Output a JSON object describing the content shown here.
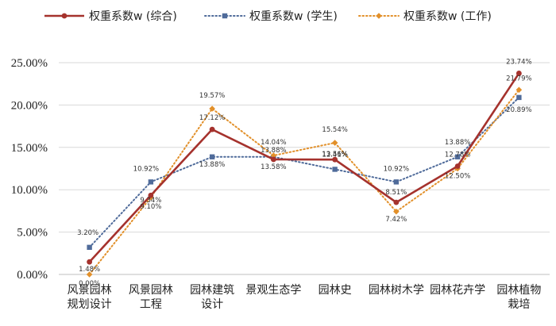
{
  "chart_data": {
    "type": "line",
    "categories": [
      [
        "风景园林",
        "规划设计"
      ],
      [
        "风景园林",
        "工程"
      ],
      [
        "园林建筑",
        "设计"
      ],
      [
        "景观生态学"
      ],
      [
        "园林史"
      ],
      [
        "园林树木学"
      ],
      [
        "园林花卉学"
      ],
      [
        "园林植物",
        "栽培"
      ]
    ],
    "y_ticks": [
      "0.00%",
      "5.00%",
      "10.00%",
      "15.00%",
      "20.00%",
      "25.00%"
    ],
    "ylim": [
      0,
      25
    ],
    "grid": "horizontal",
    "legend_position": "top",
    "series": [
      {
        "name": "权重系数w (综合)",
        "color": "#a5322d",
        "style": "solid",
        "marker": "circle",
        "values": [
          1.48,
          9.34,
          17.12,
          13.58,
          13.56,
          8.51,
          12.78,
          23.74
        ],
        "labels": [
          "1.48%",
          "9.34%",
          "17.12%",
          "13.58%",
          "13.56%",
          "8.51%",
          "12.78%",
          "23.74%"
        ]
      },
      {
        "name": "权重系数w (学生)",
        "color": "#4f6b9a",
        "style": "dotted",
        "marker": "square",
        "values": [
          3.2,
          10.92,
          13.88,
          13.88,
          12.41,
          10.92,
          13.88,
          20.89
        ],
        "labels": [
          "3.20%",
          "10.92%",
          "13.88%",
          "13.88%",
          "12.41%",
          "10.92%",
          "13.88%",
          "20.89%"
        ]
      },
      {
        "name": "权重系数w (工作)",
        "color": "#e2902a",
        "style": "dotted",
        "marker": "diamond",
        "values": [
          0.0,
          9.1,
          19.57,
          14.04,
          15.54,
          7.42,
          12.5,
          21.79
        ],
        "labels": [
          "0.00%",
          "9.10%",
          "19.57%",
          "14.04%",
          "15.54%",
          "7.42%",
          "12.50%",
          "21.79%"
        ]
      }
    ]
  }
}
